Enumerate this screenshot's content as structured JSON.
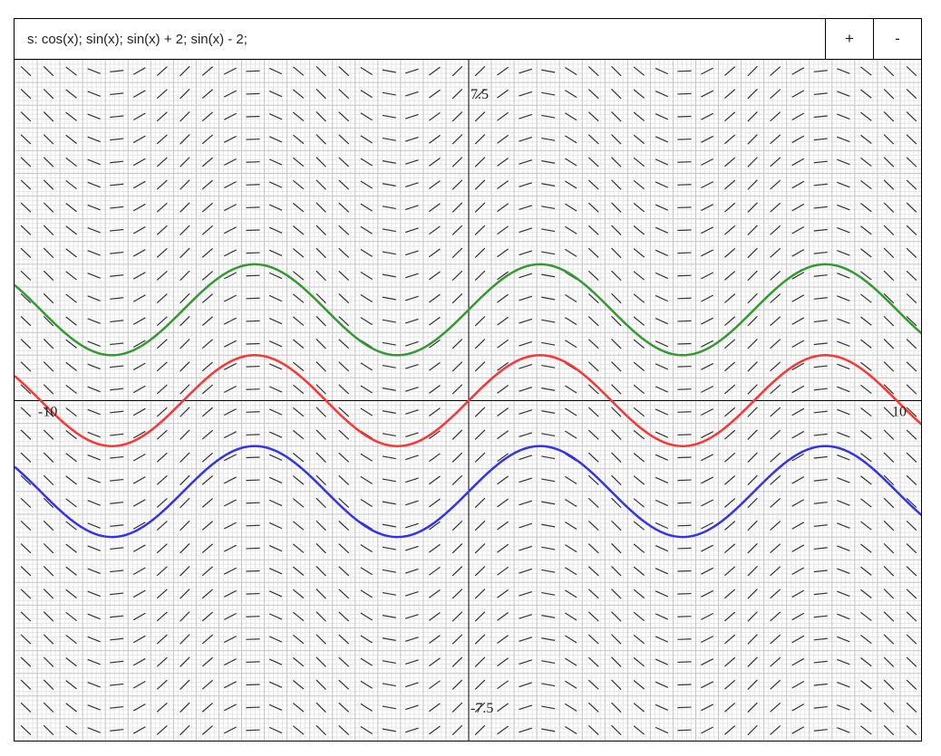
{
  "equation_bar": {
    "text": "s: cos(x); sin(x); sin(x) + 2; sin(x) - 2;",
    "plus_label": "+",
    "minus_label": "-"
  },
  "chart_data": {
    "type": "line",
    "title": "",
    "xlabel": "",
    "ylabel": "",
    "xlim": [
      -10,
      10
    ],
    "ylim": [
      -7.5,
      7.5
    ],
    "grid": true,
    "slope_field": {
      "expression": "cos(x)",
      "step": 0.5,
      "color": "#333333"
    },
    "tick_labels": {
      "x_min": "-10",
      "x_max": "10",
      "y_max": "7.5",
      "y_min": "-7.5"
    },
    "series": [
      {
        "expression": "sin(x)",
        "color": "#ff3333"
      },
      {
        "expression": "sin(x) + 2",
        "color": "#339933"
      },
      {
        "expression": "sin(x) - 2",
        "color": "#3333ee"
      }
    ]
  }
}
